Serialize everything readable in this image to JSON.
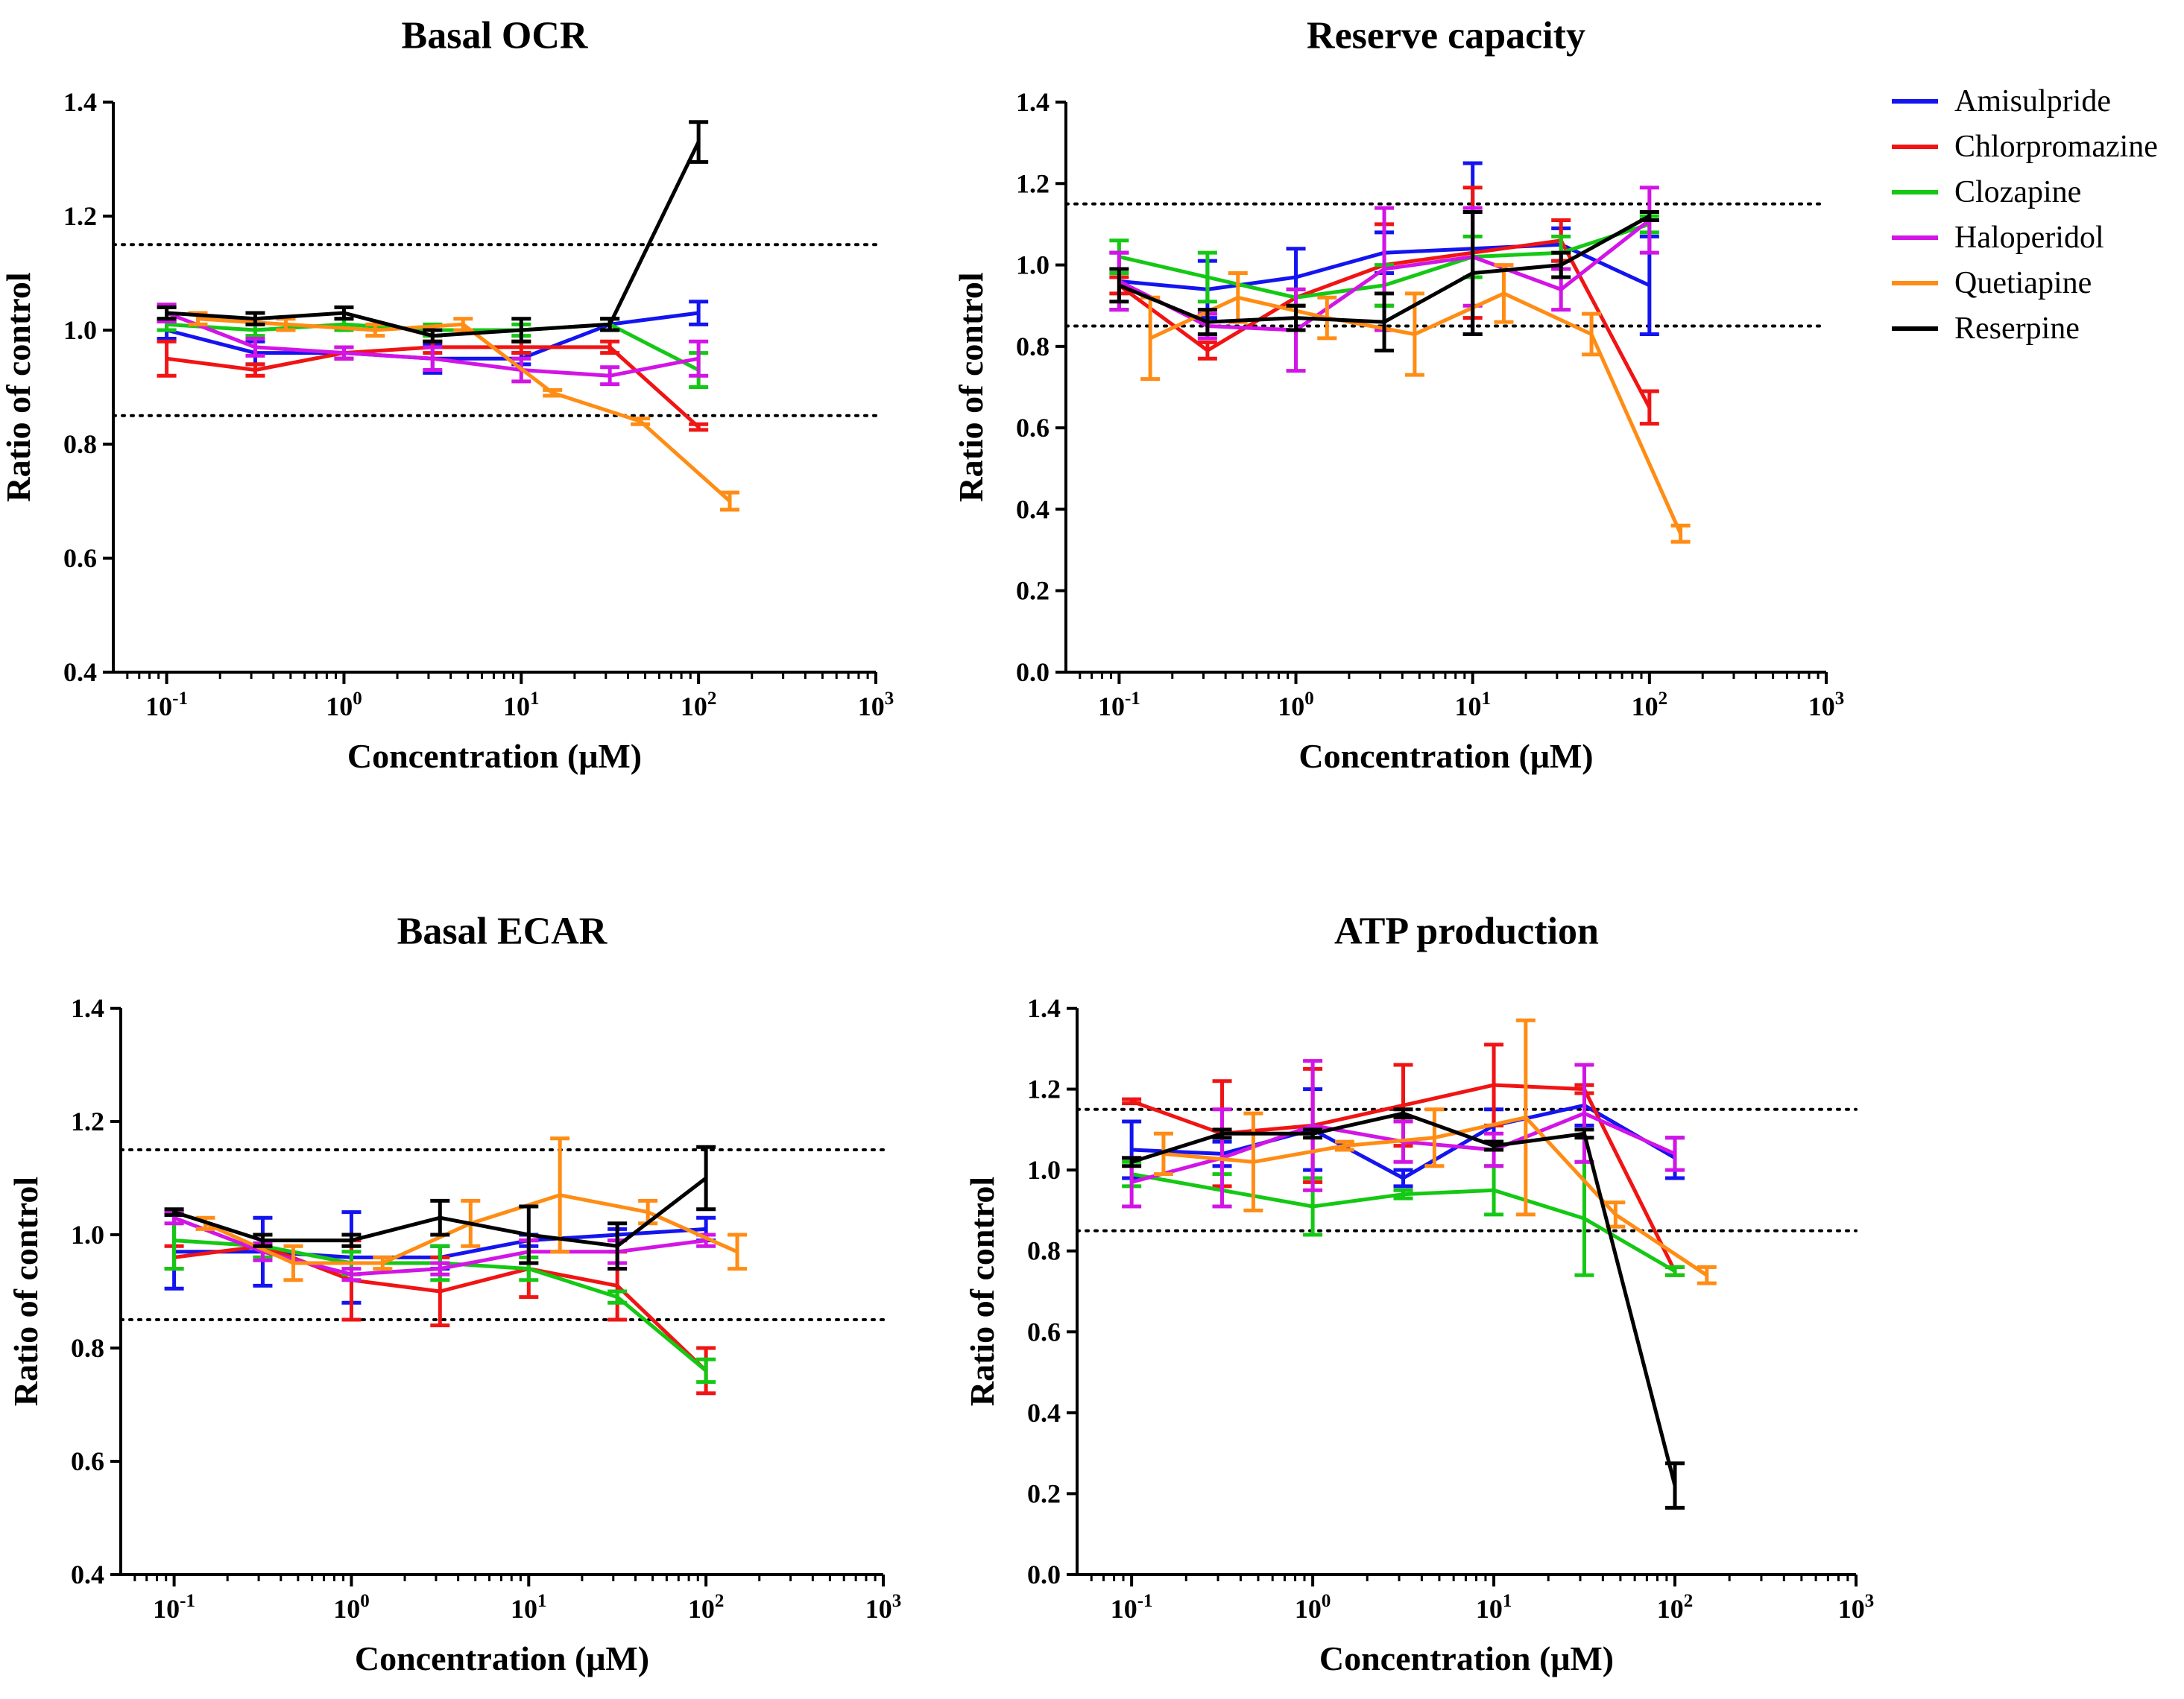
{
  "colors": {
    "Amisulpride": "#1414f0",
    "Chlorpromazine": "#f01414",
    "Clozapine": "#14c814",
    "Haloperidol": "#d214e6",
    "Quetiapine": "#ff8c14",
    "Reserpine": "#000000"
  },
  "legend": {
    "items": [
      "Amisulpride",
      "Chlorpromazine",
      "Clozapine",
      "Haloperidol",
      "Quetiapine",
      "Reserpine"
    ]
  },
  "chart_data": [
    {
      "type": "line",
      "title": "Basal OCR",
      "xlabel": "Concentration (μM)",
      "ylabel": "Ratio of control",
      "xscale": "log",
      "xlim": [
        0.05,
        1000
      ],
      "ylim": [
        0.4,
        1.4
      ],
      "yticks": [
        "0.4",
        "0.6",
        "0.8",
        "1.0",
        "1.2",
        "1.4"
      ],
      "xticks": [
        {
          "base": "10",
          "exp": "-1"
        },
        {
          "base": "10",
          "exp": "0"
        },
        {
          "base": "10",
          "exp": "1"
        },
        {
          "base": "10",
          "exp": "2"
        },
        {
          "base": "10",
          "exp": "3"
        }
      ],
      "reference_lines": [
        0.85,
        1.15
      ],
      "series": [
        {
          "name": "Amisulpride",
          "x": [
            0.1,
            0.316,
            1,
            3.16,
            10,
            31.6,
            100
          ],
          "y": [
            1.0,
            0.96,
            0.96,
            0.95,
            0.95,
            1.01,
            1.03
          ],
          "err": [
            0.015,
            0.02,
            0.01,
            0.025,
            0.01,
            0.01,
            0.02
          ]
        },
        {
          "name": "Chlorpromazine",
          "x": [
            0.1,
            0.316,
            1,
            3.16,
            10,
            31.6,
            100
          ],
          "y": [
            0.95,
            0.93,
            0.96,
            0.97,
            0.97,
            0.97,
            0.83
          ],
          "err": [
            0.03,
            0.01,
            0.01,
            0.01,
            0.01,
            0.01,
            0.005
          ]
        },
        {
          "name": "Clozapine",
          "x": [
            0.1,
            0.316,
            1,
            3.16,
            10,
            31.6,
            100
          ],
          "y": [
            1.01,
            1.0,
            1.01,
            1.0,
            1.0,
            1.01,
            0.93
          ],
          "err": [
            0.01,
            0.01,
            0.01,
            0.01,
            0.01,
            0.01,
            0.03
          ]
        },
        {
          "name": "Haloperidol",
          "x": [
            0.1,
            0.316,
            1,
            3.16,
            10,
            31.6,
            100
          ],
          "y": [
            1.03,
            0.97,
            0.96,
            0.95,
            0.93,
            0.92,
            0.95
          ],
          "err": [
            0.015,
            0.015,
            0.01,
            0.02,
            0.02,
            0.015,
            0.03
          ]
        },
        {
          "name": "Quetiapine",
          "x": [
            0.15,
            0.47,
            1.5,
            4.7,
            15,
            47,
            150
          ],
          "y": [
            1.02,
            1.01,
            1.0,
            1.01,
            0.89,
            0.84,
            0.7
          ],
          "err": [
            0.01,
            0.01,
            0.01,
            0.01,
            0.005,
            0.005,
            0.015
          ]
        },
        {
          "name": "Reserpine",
          "x": [
            0.1,
            0.316,
            1,
            3.16,
            10,
            31.6,
            100
          ],
          "y": [
            1.03,
            1.02,
            1.03,
            0.99,
            1.0,
            1.01,
            1.33
          ],
          "err": [
            0.01,
            0.01,
            0.01,
            0.01,
            0.02,
            0.01,
            0.035
          ]
        }
      ]
    },
    {
      "type": "line",
      "title": "Reserve capacity",
      "xlabel": "Concentration (μM)",
      "ylabel": "Ratio of control",
      "xscale": "log",
      "xlim": [
        0.05,
        1000
      ],
      "ylim": [
        0.0,
        1.4
      ],
      "yticks": [
        "0.0",
        "0.2",
        "0.4",
        "0.6",
        "0.8",
        "1.0",
        "1.2",
        "1.4"
      ],
      "xticks": [
        {
          "base": "10",
          "exp": "-1"
        },
        {
          "base": "10",
          "exp": "0"
        },
        {
          "base": "10",
          "exp": "1"
        },
        {
          "base": "10",
          "exp": "2"
        },
        {
          "base": "10",
          "exp": "3"
        }
      ],
      "reference_lines": [
        0.85,
        1.15
      ],
      "series": [
        {
          "name": "Amisulpride",
          "x": [
            0.1,
            0.316,
            1,
            3.16,
            10,
            31.6,
            100
          ],
          "y": [
            0.96,
            0.94,
            0.97,
            1.03,
            1.04,
            1.05,
            0.95
          ],
          "err": [
            0.07,
            0.07,
            0.07,
            0.05,
            0.21,
            0.04,
            0.12
          ]
        },
        {
          "name": "Chlorpromazine",
          "x": [
            0.1,
            0.316,
            1,
            3.16,
            10,
            31.6,
            100
          ],
          "y": [
            0.95,
            0.79,
            0.92,
            1.0,
            1.03,
            1.06,
            0.65
          ],
          "err": [
            0.02,
            0.02,
            0.02,
            0.1,
            0.16,
            0.05,
            0.04
          ]
        },
        {
          "name": "Clozapine",
          "x": [
            0.1,
            0.316,
            1,
            3.16,
            10,
            31.6,
            100
          ],
          "y": [
            1.02,
            0.97,
            0.92,
            0.95,
            1.02,
            1.03,
            1.1
          ],
          "err": [
            0.04,
            0.06,
            0.02,
            0.05,
            0.05,
            0.04,
            0.02
          ]
        },
        {
          "name": "Haloperidol",
          "x": [
            0.1,
            0.316,
            1,
            3.16,
            10,
            31.6,
            100
          ],
          "y": [
            0.96,
            0.85,
            0.84,
            0.99,
            1.02,
            0.94,
            1.11
          ],
          "err": [
            0.07,
            0.03,
            0.1,
            0.15,
            0.12,
            0.05,
            0.08
          ]
        },
        {
          "name": "Quetiapine",
          "x": [
            0.15,
            0.47,
            1.5,
            4.7,
            15,
            47,
            150
          ],
          "y": [
            0.82,
            0.92,
            0.87,
            0.83,
            0.93,
            0.83,
            0.34
          ],
          "err": [
            0.1,
            0.06,
            0.05,
            0.1,
            0.07,
            0.05,
            0.02
          ]
        },
        {
          "name": "Reserpine",
          "x": [
            0.1,
            0.316,
            1,
            3.16,
            10,
            31.6,
            100
          ],
          "y": [
            0.95,
            0.86,
            0.87,
            0.86,
            0.98,
            1.0,
            1.12
          ],
          "err": [
            0.04,
            0.03,
            0.03,
            0.07,
            0.15,
            0.03,
            0.01
          ]
        }
      ]
    },
    {
      "type": "line",
      "title": "Basal ECAR",
      "xlabel": "Concentration (μM)",
      "ylabel": "Ratio of control",
      "xscale": "log",
      "xlim": [
        0.05,
        1000
      ],
      "ylim": [
        0.4,
        1.4
      ],
      "yticks": [
        "0.4",
        "0.6",
        "0.8",
        "1.0",
        "1.2",
        "1.4"
      ],
      "xticks": [
        {
          "base": "10",
          "exp": "-1"
        },
        {
          "base": "10",
          "exp": "0"
        },
        {
          "base": "10",
          "exp": "1"
        },
        {
          "base": "10",
          "exp": "2"
        },
        {
          "base": "10",
          "exp": "3"
        }
      ],
      "reference_lines": [
        0.85,
        1.15
      ],
      "series": [
        {
          "name": "Amisulpride",
          "x": [
            0.1,
            0.316,
            1,
            3.16,
            10,
            31.6,
            100
          ],
          "y": [
            0.97,
            0.97,
            0.96,
            0.96,
            0.99,
            1.0,
            1.01
          ],
          "err": [
            0.065,
            0.06,
            0.08,
            0.02,
            0.01,
            0.01,
            0.02
          ]
        },
        {
          "name": "Chlorpromazine",
          "x": [
            0.1,
            0.316,
            1,
            3.16,
            10,
            31.6,
            100
          ],
          "y": [
            0.96,
            0.98,
            0.92,
            0.9,
            0.94,
            0.91,
            0.76
          ],
          "err": [
            0.02,
            0.02,
            0.07,
            0.06,
            0.05,
            0.06,
            0.04
          ]
        },
        {
          "name": "Clozapine",
          "x": [
            0.1,
            0.316,
            1,
            3.16,
            10,
            31.6,
            100
          ],
          "y": [
            0.99,
            0.98,
            0.95,
            0.95,
            0.94,
            0.89,
            0.76
          ],
          "err": [
            0.05,
            0.02,
            0.02,
            0.03,
            0.02,
            0.01,
            0.02
          ]
        },
        {
          "name": "Haloperidol",
          "x": [
            0.1,
            0.316,
            1,
            3.16,
            10,
            31.6,
            100
          ],
          "y": [
            1.03,
            0.97,
            0.93,
            0.94,
            0.97,
            0.97,
            0.99
          ],
          "err": [
            0.01,
            0.015,
            0.01,
            0.01,
            0.02,
            0.02,
            0.01
          ]
        },
        {
          "name": "Quetiapine",
          "x": [
            0.15,
            0.47,
            1.5,
            4.7,
            15,
            47,
            150
          ],
          "y": [
            1.02,
            0.95,
            0.95,
            1.02,
            1.07,
            1.04,
            0.97
          ],
          "err": [
            0.01,
            0.03,
            0.01,
            0.04,
            0.1,
            0.02,
            0.03
          ]
        },
        {
          "name": "Reserpine",
          "x": [
            0.1,
            0.316,
            1,
            3.16,
            10,
            31.6,
            100
          ],
          "y": [
            1.04,
            0.99,
            0.99,
            1.03,
            1.0,
            0.98,
            1.1
          ],
          "err": [
            0.005,
            0.01,
            0.01,
            0.03,
            0.05,
            0.04,
            0.055
          ]
        }
      ]
    },
    {
      "type": "line",
      "title": "ATP production",
      "xlabel": "Concentration (μM)",
      "ylabel": "Ratio of control",
      "xscale": "log",
      "xlim": [
        0.05,
        1000
      ],
      "ylim": [
        0.0,
        1.4
      ],
      "yticks": [
        "0.0",
        "0.2",
        "0.4",
        "0.6",
        "0.8",
        "1.0",
        "1.2",
        "1.4"
      ],
      "xticks": [
        {
          "base": "10",
          "exp": "-1"
        },
        {
          "base": "10",
          "exp": "0"
        },
        {
          "base": "10",
          "exp": "1"
        },
        {
          "base": "10",
          "exp": "2"
        },
        {
          "base": "10",
          "exp": "3"
        }
      ],
      "reference_lines": [
        0.85,
        1.15
      ],
      "series": [
        {
          "name": "Amisulpride",
          "x": [
            0.1,
            0.316,
            1,
            3.16,
            10,
            31.6,
            100
          ],
          "y": [
            1.05,
            1.04,
            1.1,
            0.98,
            1.11,
            1.16,
            1.03
          ],
          "err": [
            0.07,
            0.03,
            0.1,
            0.02,
            0.04,
            0.05,
            0.05
          ]
        },
        {
          "name": "Chlorpromazine",
          "x": [
            0.1,
            0.316,
            1,
            3.16,
            10,
            31.6,
            100
          ],
          "y": [
            1.17,
            1.09,
            1.11,
            1.16,
            1.21,
            1.2,
            0.75
          ],
          "err": [
            0.005,
            0.13,
            0.14,
            0.1,
            0.1,
            0.01,
            0.01
          ]
        },
        {
          "name": "Clozapine",
          "x": [
            0.1,
            0.316,
            1,
            3.16,
            10,
            31.6,
            100
          ],
          "y": [
            0.99,
            0.95,
            0.91,
            0.94,
            0.95,
            0.88,
            0.75
          ],
          "err": [
            0.03,
            0.04,
            0.07,
            0.01,
            0.06,
            0.14,
            0.01
          ]
        },
        {
          "name": "Haloperidol",
          "x": [
            0.1,
            0.316,
            1,
            3.16,
            10,
            31.6,
            100
          ],
          "y": [
            0.97,
            1.03,
            1.11,
            1.07,
            1.05,
            1.14,
            1.04
          ],
          "err": [
            0.06,
            0.12,
            0.16,
            0.05,
            0.04,
            0.12,
            0.04
          ]
        },
        {
          "name": "Quetiapine",
          "x": [
            0.15,
            0.47,
            1.5,
            4.7,
            15,
            47,
            150
          ],
          "y": [
            1.04,
            1.02,
            1.06,
            1.08,
            1.13,
            0.89,
            0.74
          ],
          "err": [
            0.05,
            0.12,
            0.01,
            0.07,
            0.24,
            0.03,
            0.02
          ]
        },
        {
          "name": "Reserpine",
          "x": [
            0.1,
            0.316,
            1,
            3.16,
            10,
            31.6,
            100
          ],
          "y": [
            1.02,
            1.09,
            1.09,
            1.14,
            1.06,
            1.09,
            0.22
          ],
          "err": [
            0.01,
            0.01,
            0.01,
            0.01,
            0.01,
            0.01,
            0.055
          ]
        }
      ]
    }
  ]
}
